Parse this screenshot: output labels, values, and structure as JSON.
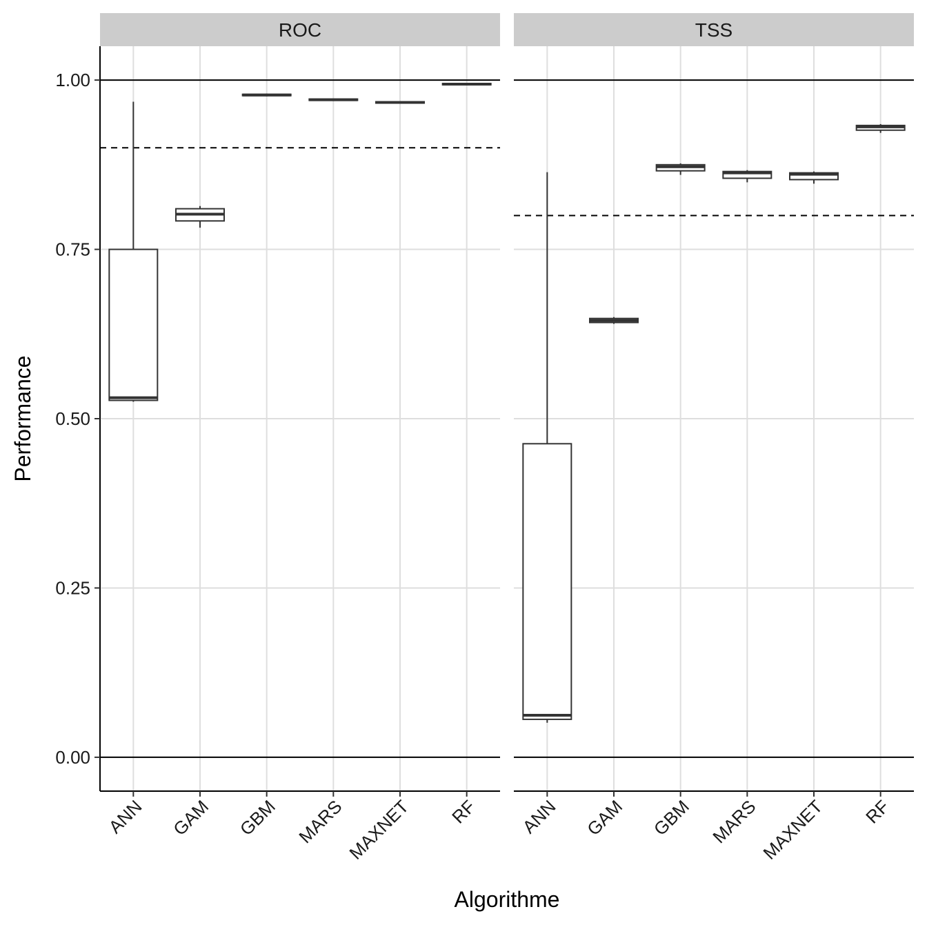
{
  "chart_data": {
    "type": "boxplot",
    "xlabel": "Algorithme",
    "ylabel": "Performance",
    "ylim": [
      -0.05,
      1.05
    ],
    "y_ticks": [
      "0.00",
      "0.25",
      "0.50",
      "0.75",
      "1.00"
    ],
    "categories": [
      "ANN",
      "GAM",
      "GBM",
      "MARS",
      "MAXNET",
      "RF"
    ],
    "grid": true,
    "reference_lines": {
      "solid": [
        0,
        1
      ]
    },
    "panels": [
      {
        "strip": "ROC",
        "threshold": 0.9,
        "boxes": [
          {
            "category": "ANN",
            "min": 0.525,
            "q1": 0.527,
            "median": 0.531,
            "q3": 0.75,
            "max": 0.968
          },
          {
            "category": "GAM",
            "min": 0.782,
            "q1": 0.792,
            "median": 0.802,
            "q3": 0.81,
            "max": 0.814
          },
          {
            "category": "GBM",
            "min": 0.976,
            "q1": 0.977,
            "median": 0.978,
            "q3": 0.979,
            "max": 0.98
          },
          {
            "category": "MARS",
            "min": 0.969,
            "q1": 0.97,
            "median": 0.971,
            "q3": 0.972,
            "max": 0.973
          },
          {
            "category": "MAXNET",
            "min": 0.965,
            "q1": 0.966,
            "median": 0.967,
            "q3": 0.968,
            "max": 0.969
          },
          {
            "category": "RF",
            "min": 0.992,
            "q1": 0.993,
            "median": 0.994,
            "q3": 0.995,
            "max": 0.996
          }
        ]
      },
      {
        "strip": "TSS",
        "threshold": 0.8,
        "boxes": [
          {
            "category": "ANN",
            "min": 0.051,
            "q1": 0.056,
            "median": 0.062,
            "q3": 0.463,
            "max": 0.864
          },
          {
            "category": "GAM",
            "min": 0.64,
            "q1": 0.642,
            "median": 0.645,
            "q3": 0.648,
            "max": 0.65
          },
          {
            "category": "GBM",
            "min": 0.86,
            "q1": 0.866,
            "median": 0.872,
            "q3": 0.875,
            "max": 0.877
          },
          {
            "category": "MARS",
            "min": 0.849,
            "q1": 0.855,
            "median": 0.863,
            "q3": 0.865,
            "max": 0.867
          },
          {
            "category": "MAXNET",
            "min": 0.847,
            "q1": 0.853,
            "median": 0.861,
            "q3": 0.863,
            "max": 0.865
          },
          {
            "category": "RF",
            "min": 0.922,
            "q1": 0.926,
            "median": 0.931,
            "q3": 0.933,
            "max": 0.935
          }
        ]
      }
    ]
  }
}
